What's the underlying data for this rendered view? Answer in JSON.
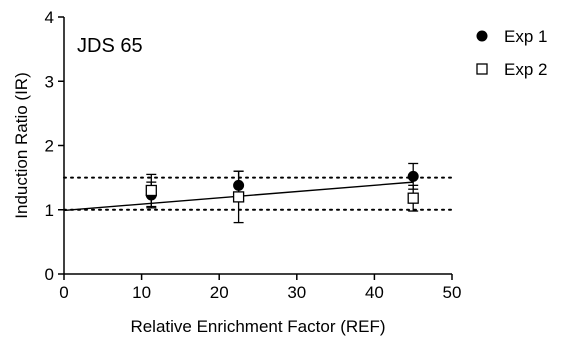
{
  "chart_data": {
    "type": "scatter",
    "annotation": "JDS 65",
    "xlabel": "Relative Enrichment Factor (REF)",
    "ylabel": "Induction Ratio (IR)",
    "xlim": [
      0,
      50
    ],
    "ylim": [
      0,
      4
    ],
    "xticks": [
      "0",
      "10",
      "20",
      "30",
      "40",
      "50"
    ],
    "yticks": [
      "0",
      "1",
      "2",
      "3",
      "4"
    ],
    "grid": false,
    "legend_position": "right",
    "series": [
      {
        "name": "Exp 1",
        "marker": "filled-circle",
        "color": "#000000",
        "points": [
          {
            "x": 11.25,
            "y": 1.23,
            "err": 0.2
          },
          {
            "x": 22.5,
            "y": 1.38,
            "err": 0.22
          },
          {
            "x": 45,
            "y": 1.52,
            "err": 0.2
          }
        ]
      },
      {
        "name": "Exp 2",
        "marker": "open-square",
        "color": "#000000",
        "points": [
          {
            "x": 11.25,
            "y": 1.3,
            "err": 0.25
          },
          {
            "x": 22.5,
            "y": 1.2,
            "err": 0.4
          },
          {
            "x": 45,
            "y": 1.18,
            "err": 0.2
          }
        ]
      }
    ],
    "reference_lines": [
      {
        "y": 1.0,
        "style": "dotted"
      },
      {
        "y": 1.5,
        "style": "dotted"
      }
    ],
    "regression_line": {
      "x": [
        0,
        45
      ],
      "y": [
        0.99,
        1.43
      ]
    }
  }
}
